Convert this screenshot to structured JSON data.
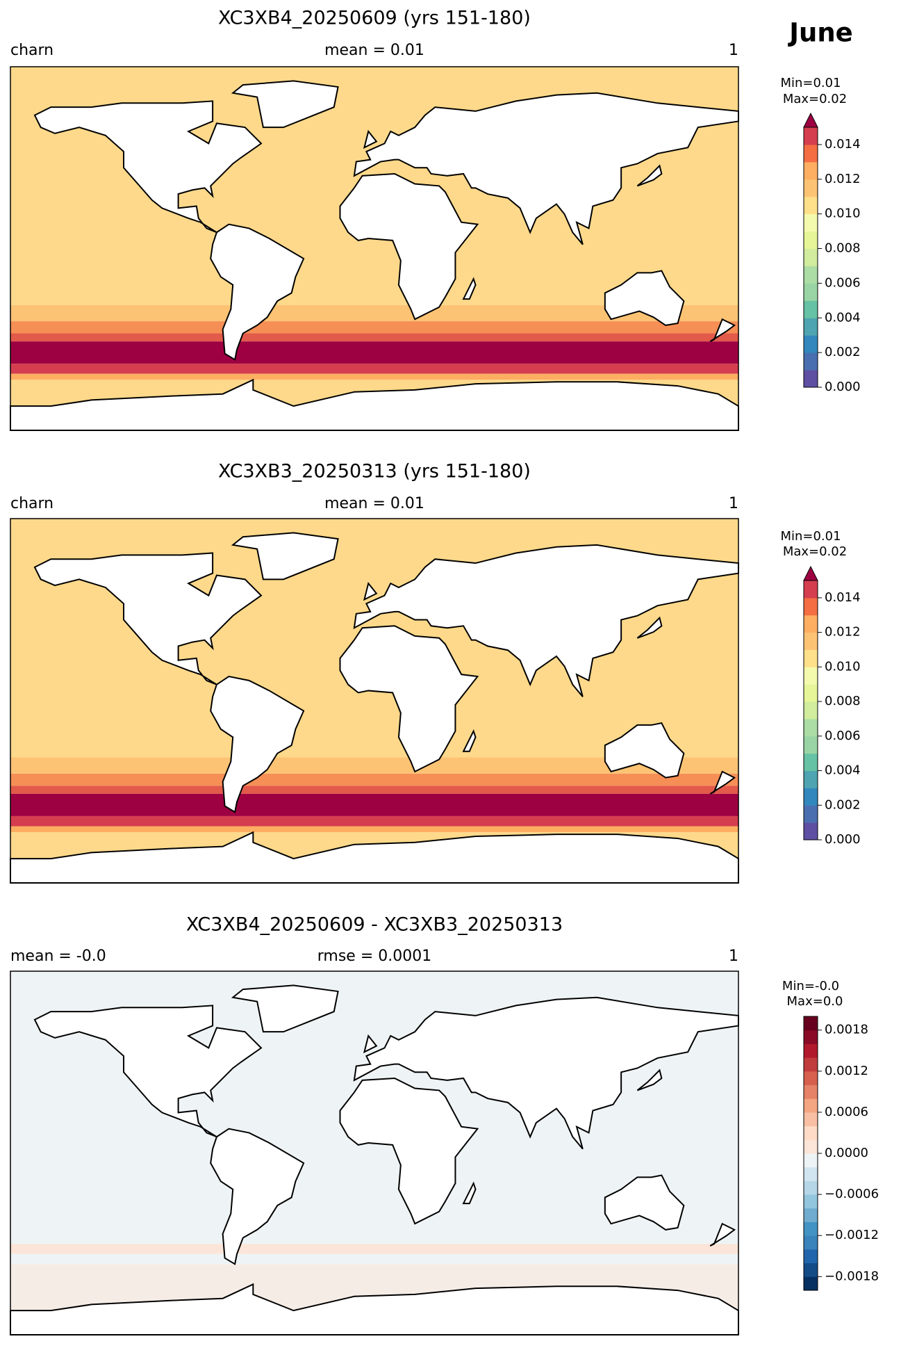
{
  "suptitle": "June",
  "chart_data": [
    {
      "type": "map",
      "title": "XC3XB4_20250609 (yrs 151-180)",
      "left_label": "charn",
      "center_label": "mean = 0.01",
      "right_label": "1",
      "min_label": "Min=0.01",
      "max_label": "Max=0.02",
      "clim": [
        0,
        0.015
      ],
      "extend": "max",
      "ticks": [
        {
          "value": 0,
          "label": "0.000"
        },
        0.002,
        0.004,
        0.006,
        0.008,
        {
          "value": 0.01,
          "label": "0.010"
        },
        0.012,
        0.014
      ],
      "colors": [
        "#5e4fa2",
        "#4a6fb1",
        "#3288bd",
        "#4ea4b0",
        "#66c2a5",
        "#99d5a4",
        "#abdda4",
        "#d0ec9c",
        "#e6f598",
        "#f4faad",
        "#fee08b",
        "#fdc374",
        "#fdae61",
        "#f46d43",
        "#d53e4f",
        "#9e0142"
      ]
    },
    {
      "type": "map",
      "title": "XC3XB3_20250313 (yrs 151-180)",
      "left_label": "charn",
      "center_label": "mean = 0.01",
      "right_label": "1",
      "min_label": "Min=0.01",
      "max_label": "Max=0.02",
      "clim": [
        0,
        0.015
      ],
      "extend": "max",
      "ticks": [
        {
          "value": 0,
          "label": "0.000"
        },
        0.002,
        0.004,
        0.006,
        0.008,
        {
          "value": 0.01,
          "label": "0.010"
        },
        0.012,
        0.014
      ],
      "colors": [
        "#5e4fa2",
        "#4a6fb1",
        "#3288bd",
        "#4ea4b0",
        "#66c2a5",
        "#99d5a4",
        "#abdda4",
        "#d0ec9c",
        "#e6f598",
        "#f4faad",
        "#fee08b",
        "#fdc374",
        "#fdae61",
        "#f46d43",
        "#d53e4f",
        "#9e0142"
      ]
    },
    {
      "type": "diffmap",
      "title": "XC3XB4_20250609 - XC3XB3_20250313",
      "left_label": "mean = -0.0",
      "center_label": "rmse = 0.0001",
      "right_label": "1",
      "min_label": "Min=-0.0",
      "max_label": "Max=0.0",
      "clim": [
        -0.002,
        0.002
      ],
      "extend": "none",
      "ticks": [
        {
          "value": -0.0018,
          "label": "−0.0018"
        },
        {
          "value": -0.0012,
          "label": "−0.0012"
        },
        {
          "value": -0.0006,
          "label": "−0.0006"
        },
        {
          "value": 0,
          "label": "0.0000"
        },
        0.0006,
        0.0012,
        0.0018
      ],
      "colors": [
        "#053061",
        "#134c87",
        "#2166ac",
        "#3a83bb",
        "#4393c3",
        "#6faccf",
        "#92c5de",
        "#b4d6e7",
        "#d1e5f0",
        "#eef3f5",
        "#fbe5d8",
        "#fddbc7",
        "#f8bfa4",
        "#f4a582",
        "#e58267",
        "#d6604d",
        "#c13c3c",
        "#b2182b",
        "#8a0b25",
        "#67001f"
      ]
    }
  ]
}
